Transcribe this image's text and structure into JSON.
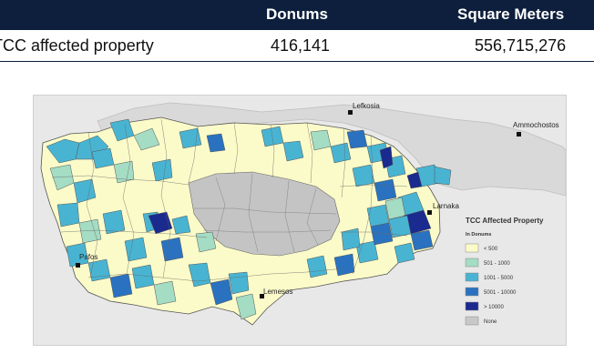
{
  "table": {
    "headers": {
      "donums": "Donums",
      "square_meters": "Square Meters"
    },
    "row": {
      "label": "TCC affected property",
      "donums": "416,141",
      "square_meters": "556,715,276"
    }
  },
  "map": {
    "places": {
      "lefkosia": "Lefkosia",
      "ammochostos": "Ammochostos",
      "larnaka": "Larnaka",
      "pafos": "Pafos",
      "lemesos": "Lemesos"
    },
    "legend": {
      "title": "TCC Affected Property",
      "subtitle": "In Donums",
      "items": [
        {
          "label": "< 500",
          "color": "#fbfbc9"
        },
        {
          "label": "501 - 1000",
          "color": "#a4dcc4"
        },
        {
          "label": "1001 - 5000",
          "color": "#48b4d2"
        },
        {
          "label": "5001 - 10000",
          "color": "#2a72c0"
        },
        {
          "label": "> 10000",
          "color": "#1a2a8e"
        },
        {
          "label": "None",
          "color": "#c8c8c8"
        }
      ]
    },
    "colors": {
      "background": "#e8e8e8",
      "north_territory": "#d9d9d9",
      "none": "#c4c4c4",
      "border": "#555555"
    }
  }
}
